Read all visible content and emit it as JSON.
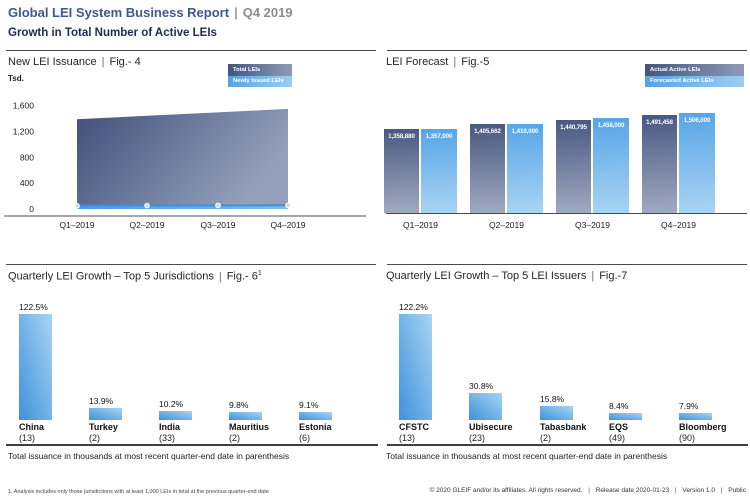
{
  "header": {
    "title": "Global LEI System Business Report",
    "separator": "|",
    "period": "Q4 2019",
    "subtitle": "Growth in Total Number of Active LEIs"
  },
  "colors": {
    "title_blue": "#3A5A96",
    "subtitle_navy": "#1D2A52",
    "dark_series_start": "#47557E",
    "dark_series_end": "#9AA4BE",
    "light_series_start": "#4D9FE3",
    "light_series_end": "#A9D4F3",
    "axis_gray": "#4A4A4A"
  },
  "chart_data": [
    {
      "id": "fig4",
      "type": "area",
      "title": "New LEI Issuance",
      "separator": "|",
      "figure_label": "Fig.- 4",
      "unit_label": "Tsd.",
      "categories": [
        "Q1–2019",
        "Q2–2019",
        "Q3–2019",
        "Q4–2019"
      ],
      "series": [
        {
          "name": "Total LEIs",
          "values": [
            1390,
            1443,
            1496,
            1550
          ],
          "estimated": true
        },
        {
          "name": "Newly Issued LEIs",
          "values": [
            50,
            52,
            55,
            58
          ],
          "estimated": true
        }
      ],
      "ylabel": "Tsd.",
      "ylim": [
        0,
        1600
      ],
      "y_ticks": [
        {
          "value": 0,
          "label": "0"
        },
        {
          "value": 400,
          "label": "400"
        },
        {
          "value": 800,
          "label": "800"
        },
        {
          "value": 1200,
          "label": "1,200"
        },
        {
          "value": 1600,
          "label": "1,600"
        }
      ],
      "legend_position": "top-right",
      "grid": false
    },
    {
      "id": "fig5",
      "type": "bar",
      "title": "LEI Forecast",
      "separator": "|",
      "figure_label": "Fig.-5",
      "categories": [
        "Q1–2019",
        "Q2–2019",
        "Q3–2019",
        "Q4–2019"
      ],
      "series": [
        {
          "name": "Actual Active LEIs",
          "values": [
            1358880,
            1405662,
            1440795,
            1491458
          ],
          "labels": [
            "1,358,880",
            "1,405,662",
            "1,440,795",
            "1,491,458"
          ]
        },
        {
          "name": "Forecasted Active LEIs",
          "values": [
            1357000,
            1410000,
            1458000,
            1506000
          ],
          "labels": [
            "1,357,000",
            "1,410,000",
            "1,458,000",
            "1,506,000"
          ]
        }
      ],
      "ylim": [
        600000,
        1550000
      ],
      "legend_position": "top-right",
      "grid": false
    },
    {
      "id": "fig6",
      "type": "bar",
      "title": "Quarterly LEI Growth – Top 5 Jurisdictions",
      "separator": "|",
      "figure_label": "Fig.- 6",
      "figure_footnote_mark": "1",
      "categories": [
        "China",
        "Turkey",
        "India",
        "Mauritius",
        "Estonia"
      ],
      "issuance_labels": [
        "(13)",
        "(2)",
        "(33)",
        "(2)",
        "(6)"
      ],
      "values": [
        122.5,
        13.9,
        10.2,
        9.8,
        9.1
      ],
      "value_labels": [
        "122.5%",
        "13.9%",
        "10.2%",
        "9.8%",
        "9.1%"
      ],
      "ylim": [
        0,
        130
      ],
      "note": "Total issuance in thousands at most recent quarter-end date in parenthesis",
      "grid": false
    },
    {
      "id": "fig7",
      "type": "bar",
      "title": "Quarterly LEI Growth – Top 5 LEI Issuers",
      "separator": "|",
      "figure_label": "Fig.-7",
      "categories": [
        "CFSTC",
        "Ubisecure",
        "Tabasbank",
        "EQS",
        "Bloomberg"
      ],
      "issuance_labels": [
        "(13)",
        "(23)",
        "(2)",
        "(49)",
        "(90)"
      ],
      "values": [
        122.2,
        30.8,
        15.8,
        8.4,
        7.9
      ],
      "value_labels": [
        "122.2%",
        "30.8%",
        "15.8%",
        "8.4%",
        "7.9%"
      ],
      "ylim": [
        0,
        130
      ],
      "note": "Total issuance in thousands at most recent quarter-end date in parenthesis",
      "grid": false
    }
  ],
  "footer": {
    "footnote": "1. Analysis includes only those jurisdictions with at least 1,000 LEIs in total at the previous quarter-end date",
    "copyright": "© 2020 GLEIF and/or its affiliates. All rights reserved.",
    "separator": "|",
    "release": "Release date 2020-01-23",
    "version": "Version 1.0",
    "classification": "Public"
  }
}
